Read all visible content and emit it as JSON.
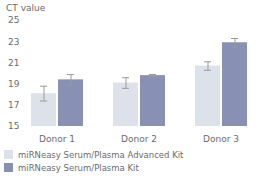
{
  "chart_data": {
    "type": "bar",
    "ylabel": "CT value",
    "categories": [
      "Donor 1",
      "Donor 2",
      "Donor 3"
    ],
    "series": [
      {
        "name": "miRNeasy Serum/Plasma Advanced Kit",
        "color": "#dde1ea",
        "values": [
          18.1,
          19.1,
          20.7
        ],
        "errors": [
          0.7,
          0.5,
          0.4
        ]
      },
      {
        "name": "miRNeasy Serum/Plasma Kit",
        "color": "#8891b3",
        "values": [
          19.4,
          19.8,
          22.9
        ],
        "errors": [
          0.5,
          0.1,
          0.4
        ]
      }
    ],
    "ylim": [
      15,
      25
    ],
    "yticks": [
      15,
      17,
      19,
      21,
      23,
      25
    ],
    "legend": "bottom-left"
  }
}
